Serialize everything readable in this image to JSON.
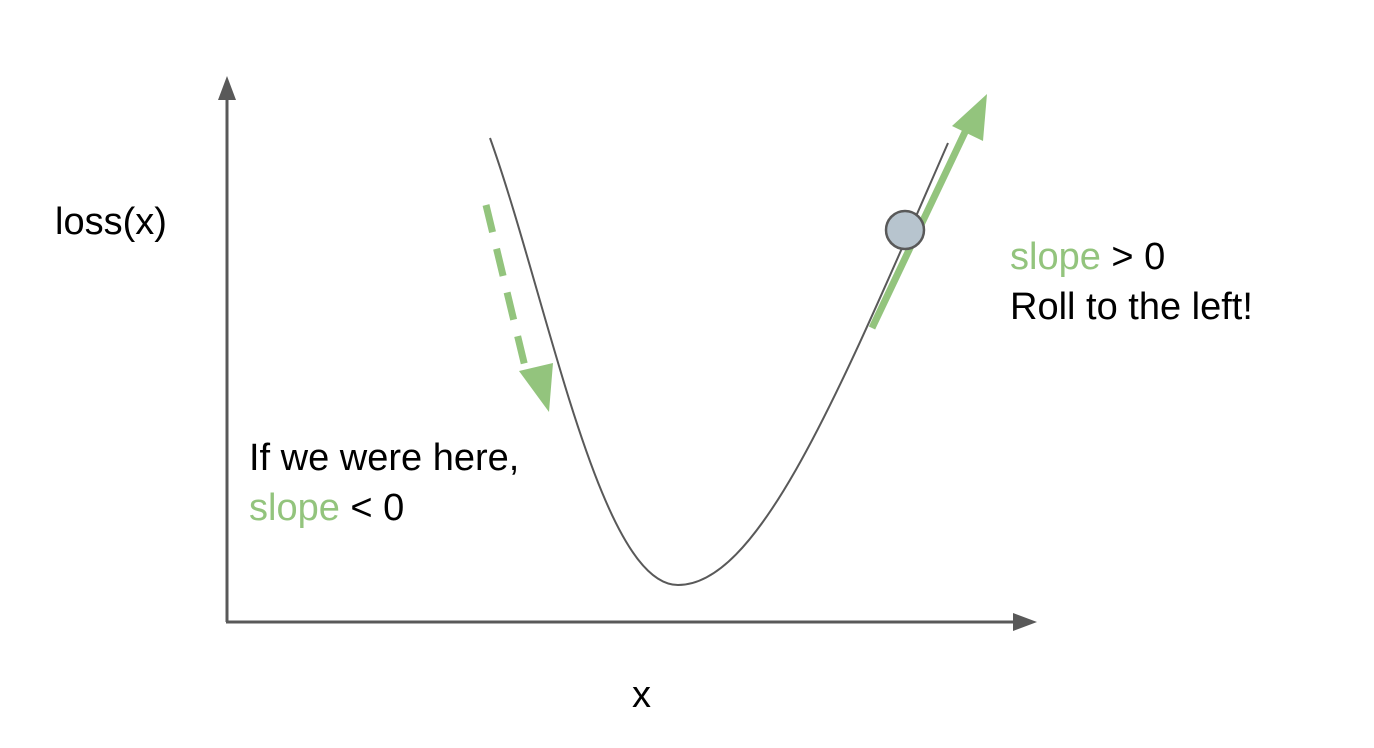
{
  "colors": {
    "axis": "#595959",
    "curve": "#595959",
    "highlight": "#93c47d",
    "ball_fill": "#b7c4ce",
    "ball_stroke": "#595959",
    "text": "#000000"
  },
  "axes": {
    "y_label": "loss(x)",
    "x_label": "x"
  },
  "right_note": {
    "slope_word": "slope",
    "relation": " > 0",
    "action": "Roll to the left!"
  },
  "left_note": {
    "line1": "If we were here,",
    "slope_word": "slope",
    "relation": " < 0"
  },
  "icons": {
    "ball": "ball-icon",
    "solid_arrow": "solid-slope-arrow",
    "dashed_arrow": "dashed-slope-arrow"
  }
}
